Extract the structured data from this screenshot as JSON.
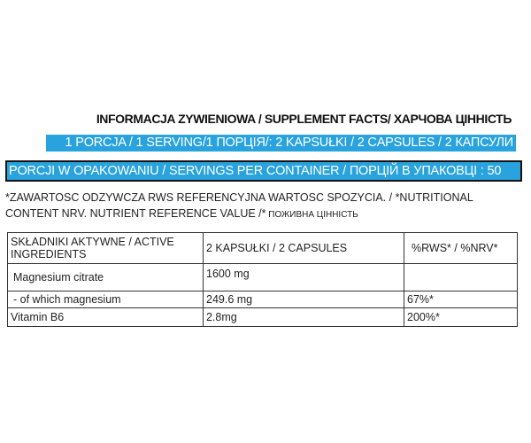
{
  "title": "INFORMACJA ZYWIENIOWA / SUPPLEMENT FACTS/ ХАРЧОВА ЦІННІСТЬ",
  "serving": "1 PORCJA / 1 SERVING/1 ПОРЦІЯ/: 2 KAPSUŁKI / 2 CAPSULES / 2 КАПСУЛИ",
  "servings_per_container": "PORCJI W OPAKOWANIU / SERVINGS PER CONTAINER / ПОРЦІЙ В УПАКОВЦІ : 50",
  "footnote": {
    "main": "*ZAWARTOSC ODZYWCZA RWS REFERENCYJNA WARTOSC SPOZYCIA. / *NUTRITIONAL CONTENT NRV. NUTRIENT REFERENCE VALUE /*",
    "cyrillic": " ПОЖИВНА ЦІННІСТЬ"
  },
  "table": {
    "headers": [
      "SKŁADNIKI AKTYWNE / ACTIVE INGREDIENTS",
      "2 KAPSUŁKI  /  2 CAPSULES",
      "%RWS* / %NRV*"
    ],
    "rows": [
      [
        "Magnesium citrate",
        "1600 mg",
        ""
      ],
      [
        "- of which magnesium",
        "249.6 mg",
        "67%*"
      ],
      [
        "Vitamin B6",
        "2.8mg",
        "200%*"
      ]
    ]
  },
  "colors": {
    "accent": "#29a3dd"
  }
}
